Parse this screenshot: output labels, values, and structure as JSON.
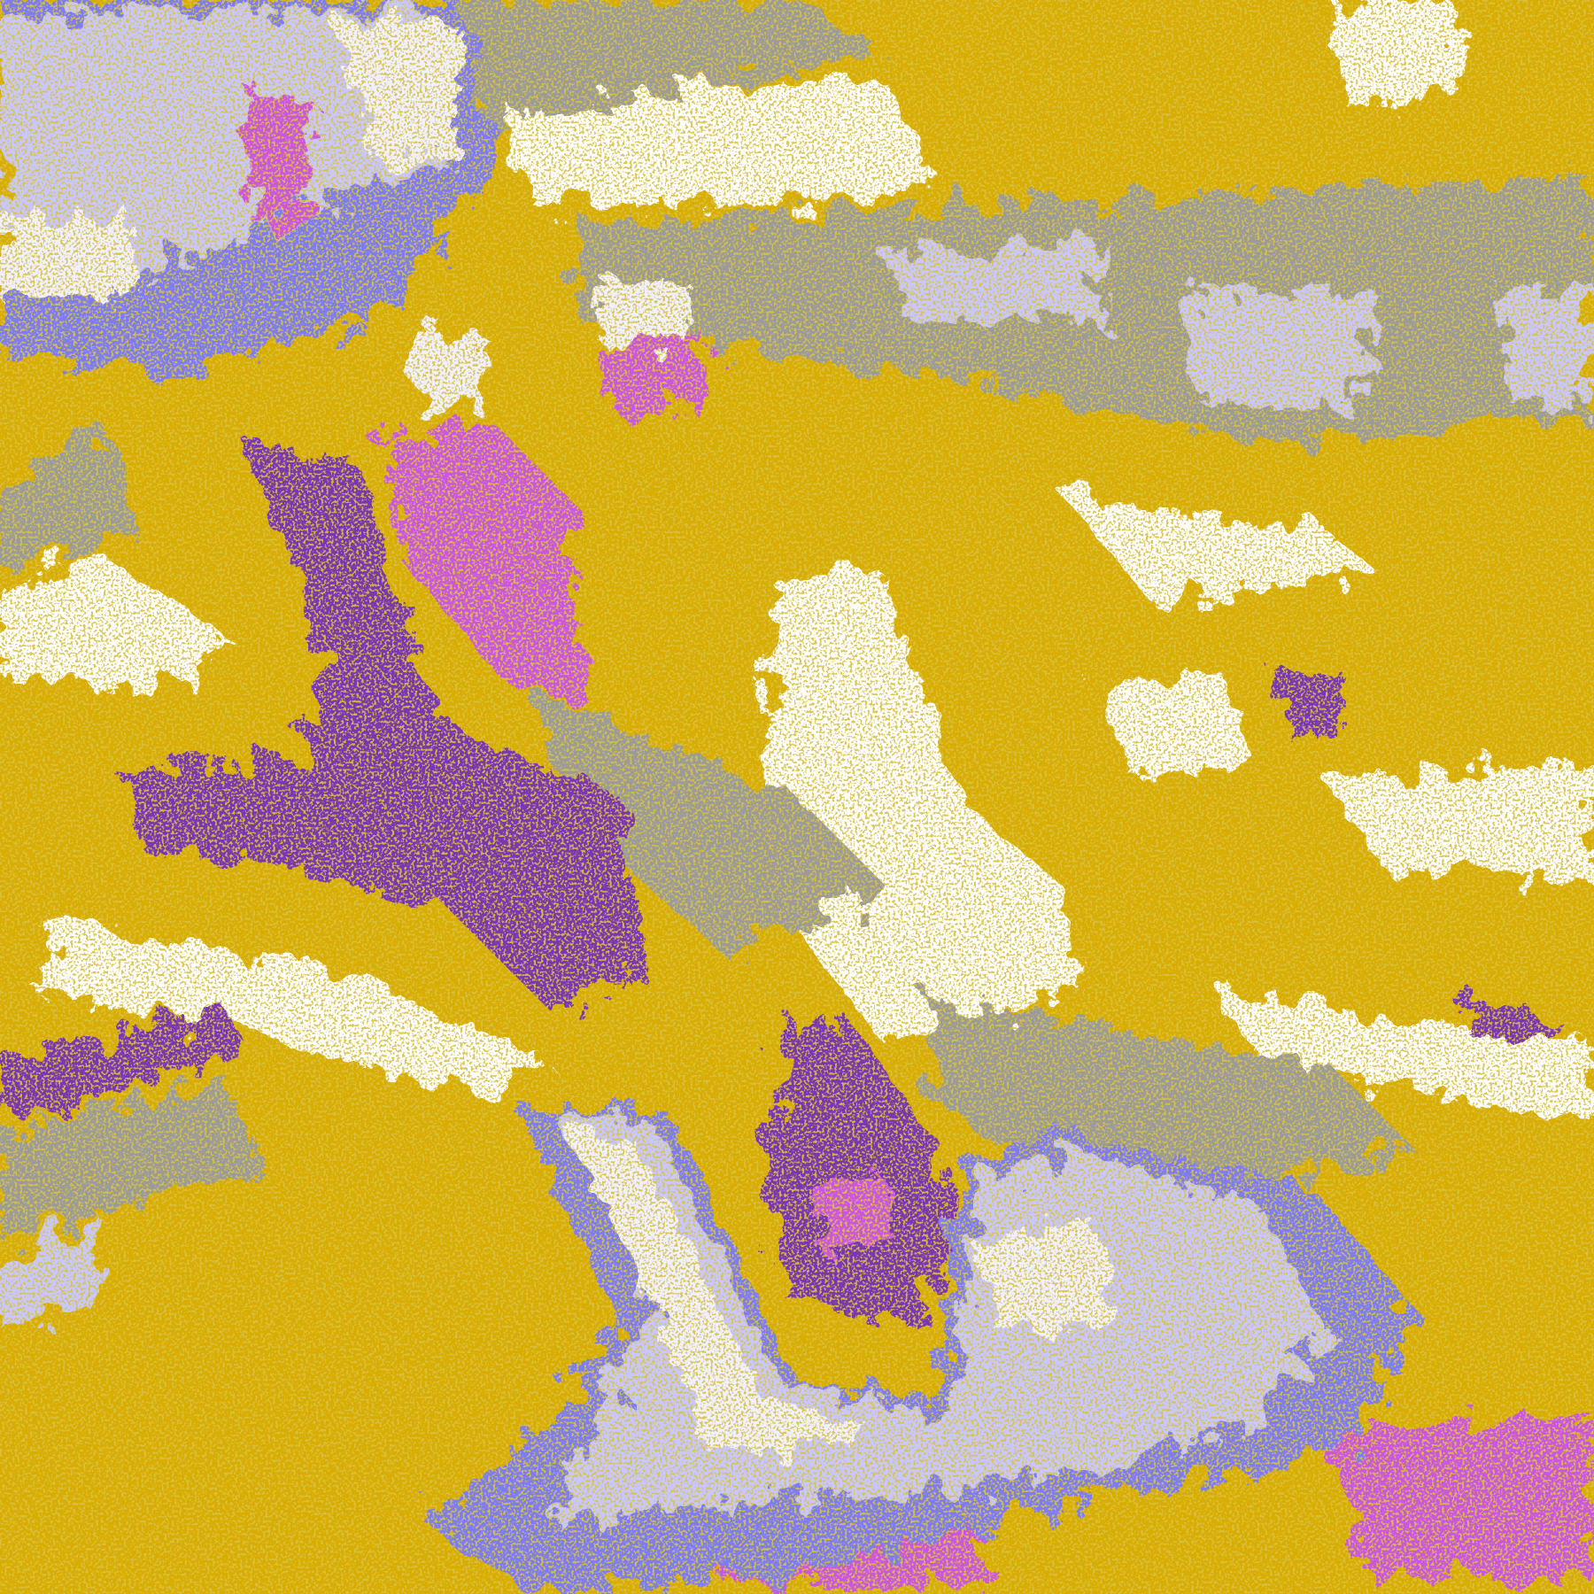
{
  "image": {
    "kind": "false-color satellite cloud classification",
    "palette": {
      "clear": "#ffffff",
      "gold": "#d9ac00",
      "dark_gold": "#b08a10",
      "purple": "#7a35b0",
      "magenta": "#cc55dd",
      "gray": "#9a9a9a",
      "periwinkle": "#7c7cf0",
      "lavender": "#c8c8ff",
      "pale_lavender": "#f0f0ff"
    }
  }
}
